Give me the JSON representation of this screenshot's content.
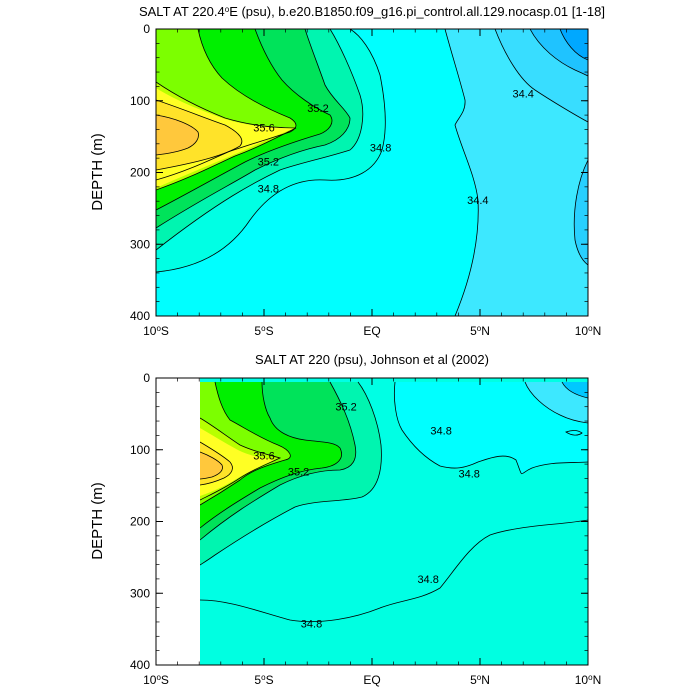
{
  "chart_data": [
    {
      "type": "contour",
      "title": "SALT AT 220.4°E (psu), b.e20.B1850.f09_g16.pi_control.all.129.nocasp.01 [1-18]",
      "title_parts": {
        "pre": "SALT AT 220.4",
        "sup": "o",
        "post": "E (psu), b.e20.B1850.f09_g16.pi_control.all.129.nocasp.01 [1-18]"
      },
      "ylabel": "DEPTH (m)",
      "xlim": [
        -10,
        10
      ],
      "ylim": [
        0,
        400
      ],
      "y_reversed": true,
      "x_ticks": [
        {
          "value": -10,
          "num": "10",
          "deg": "o",
          "hemi": "S"
        },
        {
          "value": -5,
          "num": "5",
          "deg": "o",
          "hemi": "S"
        },
        {
          "value": 0,
          "num": "EQ",
          "deg": "",
          "hemi": ""
        },
        {
          "value": 5,
          "num": "5",
          "deg": "o",
          "hemi": "N"
        },
        {
          "value": 10,
          "num": "10",
          "deg": "o",
          "hemi": "N"
        }
      ],
      "y_ticks": [
        0,
        100,
        200,
        300,
        400
      ],
      "contour_labels": [
        {
          "text": "35.6",
          "lon": -5.0,
          "depth": 137
        },
        {
          "text": "35.2",
          "lon": -2.5,
          "depth": 110
        },
        {
          "text": "35.2",
          "lon": -4.8,
          "depth": 185
        },
        {
          "text": "34.8",
          "lon": 0.4,
          "depth": 165
        },
        {
          "text": "34.8",
          "lon": -4.8,
          "depth": 222
        },
        {
          "text": "34.4",
          "lon": 4.9,
          "depth": 238
        },
        {
          "text": "34.4",
          "lon": 7.0,
          "depth": 90
        }
      ]
    },
    {
      "type": "contour",
      "title": "SALT AT 220 (psu), Johnson et al (2002)",
      "title_parts": {
        "pre": "SALT AT 220 (psu), Johnson et al (2002)",
        "sup": "",
        "post": ""
      },
      "ylabel": "DEPTH (m)",
      "xlim": [
        -10,
        10
      ],
      "ylim": [
        0,
        400
      ],
      "y_reversed": true,
      "data_lon_min": -8,
      "x_ticks": [
        {
          "value": -10,
          "num": "10",
          "deg": "o",
          "hemi": "S"
        },
        {
          "value": -5,
          "num": "5",
          "deg": "o",
          "hemi": "S"
        },
        {
          "value": 0,
          "num": "EQ",
          "deg": "",
          "hemi": ""
        },
        {
          "value": 5,
          "num": "5",
          "deg": "o",
          "hemi": "N"
        },
        {
          "value": 10,
          "num": "10",
          "deg": "o",
          "hemi": "N"
        }
      ],
      "y_ticks": [
        0,
        100,
        200,
        300,
        400
      ],
      "contour_labels": [
        {
          "text": "35.6",
          "lon": -5.0,
          "depth": 108
        },
        {
          "text": "35.2",
          "lon": -1.2,
          "depth": 40
        },
        {
          "text": "35.2",
          "lon": -3.4,
          "depth": 130
        },
        {
          "text": "34.8",
          "lon": 3.2,
          "depth": 73
        },
        {
          "text": "34.8",
          "lon": 4.5,
          "depth": 133
        },
        {
          "text": "34.8",
          "lon": 2.6,
          "depth": 280
        },
        {
          "text": "34.8",
          "lon": -2.8,
          "depth": 342
        }
      ]
    }
  ]
}
